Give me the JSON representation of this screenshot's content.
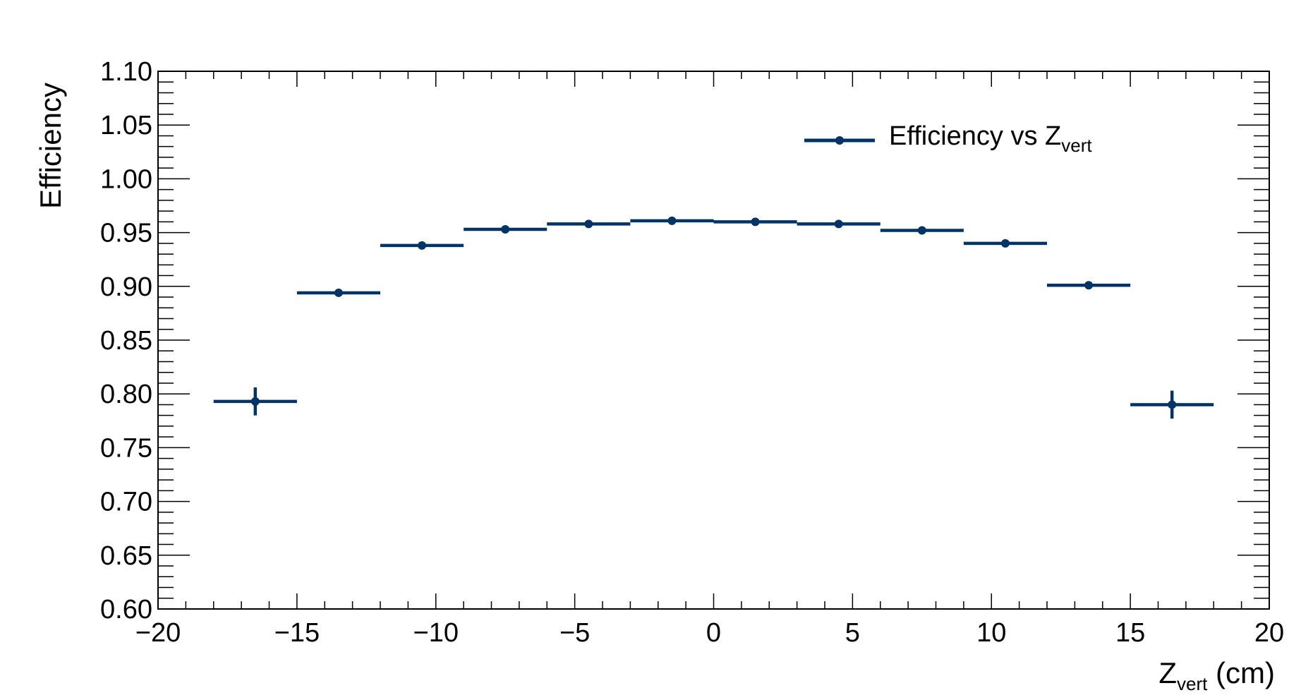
{
  "chart_data": {
    "type": "scatter",
    "xlabel": "Z",
    "xlabel_sub": "vert",
    "xlabel_unit": " (cm)",
    "ylabel": "Efficiency",
    "xlim": [
      -20,
      20
    ],
    "ylim": [
      0.6,
      1.1
    ],
    "x_ticks": [
      -20,
      -15,
      -10,
      -5,
      0,
      5,
      10,
      15,
      20
    ],
    "x_tick_labels": [
      "−20",
      "−15",
      "−10",
      "−5",
      "0",
      "5",
      "10",
      "15",
      "20"
    ],
    "y_ticks": [
      0.6,
      0.65,
      0.7,
      0.75,
      0.8,
      0.85,
      0.9,
      0.95,
      1.0,
      1.05,
      1.1
    ],
    "y_tick_labels": [
      "0.60",
      "0.65",
      "0.70",
      "0.75",
      "0.80",
      "0.85",
      "0.90",
      "0.95",
      "1.00",
      "1.05",
      "1.10"
    ],
    "grid": false,
    "legend_position": "top-right",
    "series": [
      {
        "name": "Efficiency vs Z",
        "name_sub": "vert",
        "color": "#003366",
        "points": [
          {
            "x": -16.5,
            "y": 0.793,
            "xerr": 1.5,
            "yerr": 0.013
          },
          {
            "x": -13.5,
            "y": 0.894,
            "xerr": 1.5,
            "yerr": 0.003
          },
          {
            "x": -10.5,
            "y": 0.938,
            "xerr": 1.5,
            "yerr": 0.002
          },
          {
            "x": -7.5,
            "y": 0.953,
            "xerr": 1.5,
            "yerr": 0.002
          },
          {
            "x": -4.5,
            "y": 0.958,
            "xerr": 1.5,
            "yerr": 0.002
          },
          {
            "x": -1.5,
            "y": 0.961,
            "xerr": 1.5,
            "yerr": 0.002
          },
          {
            "x": 1.5,
            "y": 0.96,
            "xerr": 1.5,
            "yerr": 0.002
          },
          {
            "x": 4.5,
            "y": 0.958,
            "xerr": 1.5,
            "yerr": 0.002
          },
          {
            "x": 7.5,
            "y": 0.952,
            "xerr": 1.5,
            "yerr": 0.002
          },
          {
            "x": 10.5,
            "y": 0.94,
            "xerr": 1.5,
            "yerr": 0.002
          },
          {
            "x": 13.5,
            "y": 0.901,
            "xerr": 1.5,
            "yerr": 0.003
          },
          {
            "x": 16.5,
            "y": 0.79,
            "xerr": 1.5,
            "yerr": 0.013
          }
        ]
      }
    ]
  }
}
